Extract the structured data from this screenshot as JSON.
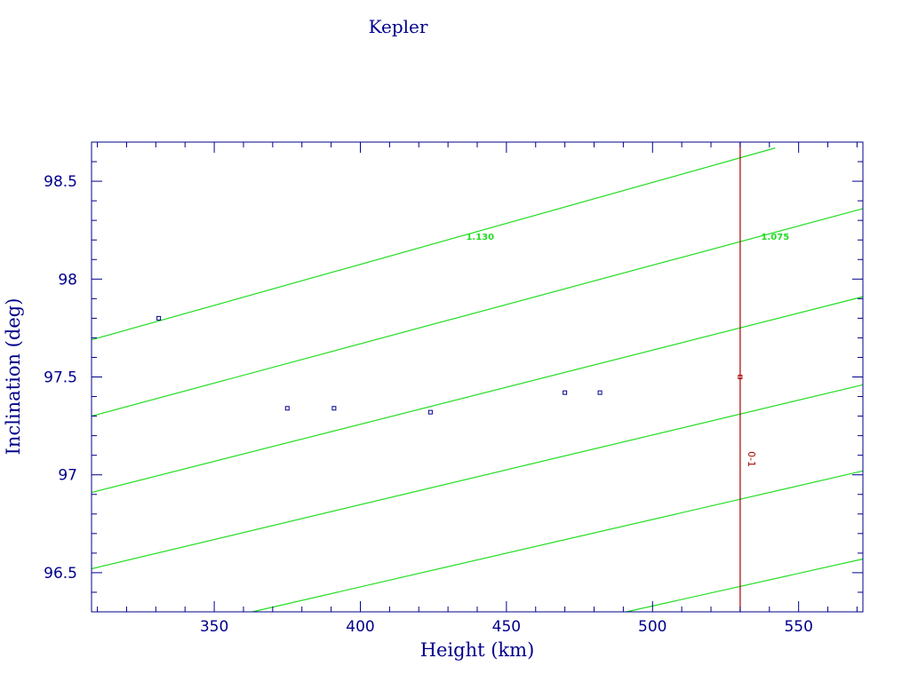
{
  "colors": {
    "axis": "#00008b",
    "text": "#00008b",
    "contour": "#22dd22",
    "points": "#00008b",
    "reference": "#aa0000",
    "background": "#ffffff"
  },
  "chart_data": {
    "type": "scatter",
    "title": "Kepler",
    "xlabel": "Height (km)",
    "ylabel": "Inclination (deg)",
    "xlim": [
      308,
      572
    ],
    "ylim": [
      96.3,
      98.7
    ],
    "xticks": [
      350,
      400,
      450,
      500,
      550
    ],
    "yticks": [
      96.5,
      97,
      97.5,
      98,
      98.5
    ],
    "xtick_labels": [
      "350",
      "400",
      "450",
      "500",
      "550"
    ],
    "ytick_labels": [
      "96.5",
      "97",
      "97.5",
      "98",
      "98.5"
    ],
    "grid": false,
    "points": [
      {
        "x": 331,
        "y": 97.8
      },
      {
        "x": 375,
        "y": 97.34
      },
      {
        "x": 391,
        "y": 97.34
      },
      {
        "x": 424,
        "y": 97.32
      },
      {
        "x": 470,
        "y": 97.42
      },
      {
        "x": 482,
        "y": 97.42
      }
    ],
    "reference": {
      "x": 530,
      "marker_y": 97.5,
      "label": "0-1"
    },
    "contours": [
      {
        "x1": 308,
        "y1": 97.69,
        "x2": 542,
        "y2": 98.67
      },
      {
        "x1": 308,
        "y1": 97.3,
        "x2": 572,
        "y2": 98.36
      },
      {
        "x1": 308,
        "y1": 96.91,
        "x2": 572,
        "y2": 97.91
      },
      {
        "x1": 308,
        "y1": 96.52,
        "x2": 572,
        "y2": 97.46
      },
      {
        "x1": 363,
        "y1": 96.3,
        "x2": 572,
        "y2": 97.02
      },
      {
        "x1": 491,
        "y1": 96.3,
        "x2": 572,
        "y2": 96.57
      }
    ],
    "contour_labels": [
      {
        "text": "1.130",
        "x": 441,
        "y": 98.22
      },
      {
        "text": "1.075",
        "x": 542,
        "y": 98.22
      }
    ]
  }
}
